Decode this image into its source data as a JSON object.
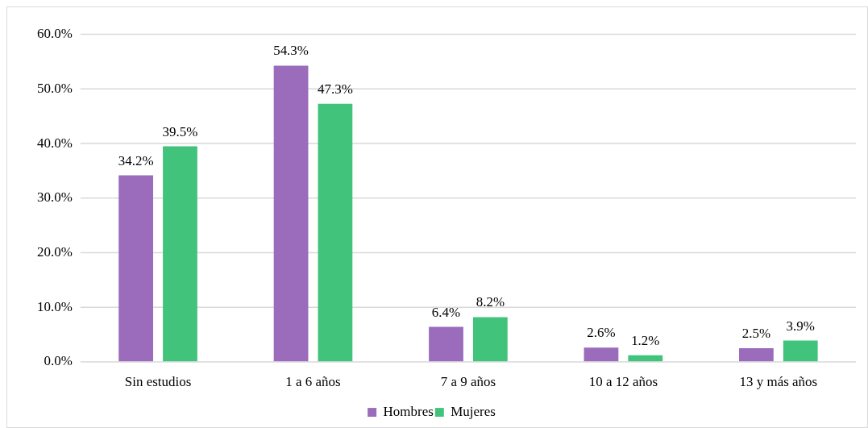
{
  "chart_data": {
    "type": "bar",
    "categories": [
      "Sin estudios",
      "1 a 6 años",
      "7 a 9 años",
      "10 a 12 años",
      "13 y más años"
    ],
    "series": [
      {
        "name": "Hombres",
        "color": "#9a6cbb",
        "values": [
          34.2,
          54.3,
          6.4,
          2.6,
          2.5
        ],
        "value_labels": [
          "34.2%",
          "54.3%",
          "6.4%",
          "2.6%",
          "2.5%"
        ]
      },
      {
        "name": "Mujeres",
        "color": "#41c37b",
        "values": [
          39.5,
          47.3,
          8.2,
          1.2,
          3.9
        ],
        "value_labels": [
          "39.5%",
          "47.3%",
          "8.2%",
          "1.2%",
          "3.9%"
        ]
      }
    ],
    "ylim": [
      0,
      60
    ],
    "yticks": [
      {
        "value": 0,
        "label": "0.0%"
      },
      {
        "value": 10,
        "label": "10.0%"
      },
      {
        "value": 20,
        "label": "20.0%"
      },
      {
        "value": 30,
        "label": "30.0%"
      },
      {
        "value": 40,
        "label": "40.0%"
      },
      {
        "value": 50,
        "label": "50.0%"
      },
      {
        "value": 60,
        "label": "60.0%"
      }
    ],
    "grid": "y",
    "legend": "bottom"
  }
}
